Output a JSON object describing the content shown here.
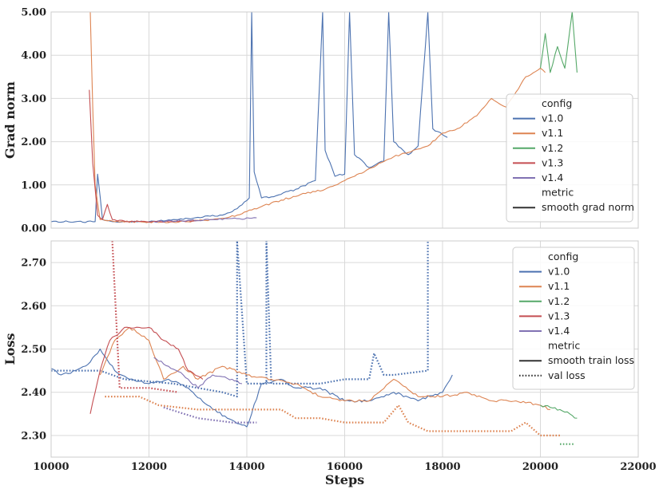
{
  "chart_data": [
    {
      "type": "line",
      "ylabel": "Grad norm",
      "xlabel": "",
      "xlim": [
        10000,
        22000
      ],
      "ylim": [
        0,
        5
      ],
      "yticks": [
        "0.00",
        "1.00",
        "2.00",
        "3.00",
        "4.00",
        "5.00"
      ],
      "grid": true,
      "legend": {
        "placement": "right",
        "config_title": "config",
        "metric_title": "metric",
        "config_entries": [
          {
            "label": "v1.0",
            "color": "#4c72b0"
          },
          {
            "label": "v1.1",
            "color": "#dd8452"
          },
          {
            "label": "v1.2",
            "color": "#55a868"
          },
          {
            "label": "v1.3",
            "color": "#c44e52"
          },
          {
            "label": "v1.4",
            "color": "#8172b3"
          }
        ],
        "metric_entries": [
          {
            "label": "smooth grad norm",
            "style": "solid"
          }
        ]
      },
      "series": [
        {
          "name": "v1.0",
          "metric": "smooth grad norm",
          "color": "#4c72b0",
          "points": [
            [
              10000,
              0.15
            ],
            [
              10500,
              0.15
            ],
            [
              10900,
              0.15
            ],
            [
              10950,
              1.25
            ],
            [
              11050,
              0.2
            ],
            [
              11300,
              0.15
            ],
            [
              12000,
              0.15
            ],
            [
              12600,
              0.2
            ],
            [
              13000,
              0.25
            ],
            [
              13500,
              0.3
            ],
            [
              13800,
              0.45
            ],
            [
              14050,
              0.7
            ],
            [
              14100,
              5.0
            ],
            [
              14150,
              1.3
            ],
            [
              14300,
              0.7
            ],
            [
              14600,
              0.75
            ],
            [
              15000,
              0.9
            ],
            [
              15400,
              1.1
            ],
            [
              15550,
              5.0
            ],
            [
              15600,
              1.8
            ],
            [
              15800,
              1.2
            ],
            [
              16000,
              1.25
            ],
            [
              16100,
              5.0
            ],
            [
              16200,
              1.7
            ],
            [
              16500,
              1.4
            ],
            [
              16800,
              1.55
            ],
            [
              16900,
              5.0
            ],
            [
              17000,
              2.0
            ],
            [
              17300,
              1.7
            ],
            [
              17500,
              1.9
            ],
            [
              17700,
              5.0
            ],
            [
              17800,
              2.3
            ],
            [
              18100,
              2.1
            ]
          ]
        },
        {
          "name": "v1.1",
          "metric": "smooth grad norm",
          "color": "#dd8452",
          "points": [
            [
              10800,
              5.0
            ],
            [
              10850,
              2.8
            ],
            [
              10900,
              1.0
            ],
            [
              11000,
              0.2
            ],
            [
              11300,
              0.15
            ],
            [
              12000,
              0.14
            ],
            [
              12800,
              0.15
            ],
            [
              13300,
              0.2
            ],
            [
              13800,
              0.3
            ],
            [
              14300,
              0.5
            ],
            [
              14700,
              0.65
            ],
            [
              15200,
              0.8
            ],
            [
              15600,
              0.9
            ],
            [
              16000,
              1.1
            ],
            [
              16400,
              1.3
            ],
            [
              16700,
              1.5
            ],
            [
              17000,
              1.65
            ],
            [
              17400,
              1.8
            ],
            [
              17700,
              1.9
            ],
            [
              18000,
              2.2
            ],
            [
              18300,
              2.3
            ],
            [
              18700,
              2.6
            ],
            [
              19000,
              3.0
            ],
            [
              19300,
              2.8
            ],
            [
              19700,
              3.5
            ],
            [
              20000,
              3.7
            ],
            [
              20100,
              3.6
            ]
          ]
        },
        {
          "name": "v1.2",
          "metric": "smooth grad norm",
          "color": "#55a868",
          "points": [
            [
              20000,
              3.7
            ],
            [
              20100,
              4.5
            ],
            [
              20200,
              3.6
            ],
            [
              20350,
              4.2
            ],
            [
              20500,
              3.7
            ],
            [
              20650,
              5.0
            ],
            [
              20750,
              3.6
            ]
          ]
        },
        {
          "name": "v1.3",
          "metric": "smooth grad norm",
          "color": "#c44e52",
          "points": [
            [
              10780,
              3.2
            ],
            [
              10850,
              1.5
            ],
            [
              10950,
              0.3
            ],
            [
              11050,
              0.2
            ],
            [
              11150,
              0.55
            ],
            [
              11250,
              0.2
            ],
            [
              11600,
              0.15
            ],
            [
              12400,
              0.15
            ],
            [
              13000,
              0.18
            ]
          ]
        },
        {
          "name": "v1.4",
          "metric": "smooth grad norm",
          "color": "#8172b3",
          "points": [
            [
              12100,
              0.15
            ],
            [
              12800,
              0.18
            ],
            [
              13300,
              0.2
            ],
            [
              13800,
              0.22
            ],
            [
              14200,
              0.24
            ]
          ]
        }
      ]
    },
    {
      "type": "line",
      "ylabel": "Loss",
      "xlabel": "Steps",
      "xlim": [
        10000,
        22000
      ],
      "ylim": [
        2.25,
        2.75
      ],
      "yticks": [
        "2.30",
        "2.40",
        "2.50",
        "2.60",
        "2.70"
      ],
      "xticks": [
        "10000",
        "12000",
        "14000",
        "16000",
        "18000",
        "20000",
        "22000"
      ],
      "grid": true,
      "legend": {
        "placement": "top-right",
        "config_title": "config",
        "metric_title": "metric",
        "config_entries": [
          {
            "label": "v1.0",
            "color": "#4c72b0"
          },
          {
            "label": "v1.1",
            "color": "#dd8452"
          },
          {
            "label": "v1.2",
            "color": "#55a868"
          },
          {
            "label": "v1.3",
            "color": "#c44e52"
          },
          {
            "label": "v1.4",
            "color": "#8172b3"
          }
        ],
        "metric_entries": [
          {
            "label": "smooth train loss",
            "style": "solid"
          },
          {
            "label": "val loss",
            "style": "dotted"
          }
        ]
      },
      "series": [
        {
          "name": "v1.0",
          "metric": "smooth train loss",
          "color": "#4c72b0",
          "points": [
            [
              10000,
              2.455
            ],
            [
              10200,
              2.44
            ],
            [
              10500,
              2.45
            ],
            [
              10800,
              2.47
            ],
            [
              11000,
              2.5
            ],
            [
              11300,
              2.45
            ],
            [
              11600,
              2.43
            ],
            [
              12000,
              2.42
            ],
            [
              12400,
              2.43
            ],
            [
              12800,
              2.41
            ],
            [
              13200,
              2.37
            ],
            [
              13600,
              2.34
            ],
            [
              14000,
              2.32
            ],
            [
              14300,
              2.42
            ],
            [
              14700,
              2.43
            ],
            [
              15000,
              2.41
            ],
            [
              15500,
              2.41
            ],
            [
              16000,
              2.38
            ],
            [
              16500,
              2.38
            ],
            [
              17000,
              2.4
            ],
            [
              17500,
              2.38
            ],
            [
              18000,
              2.4
            ],
            [
              18200,
              2.44
            ]
          ]
        },
        {
          "name": "v1.0",
          "metric": "val loss",
          "color": "#4c72b0",
          "points": [
            [
              10000,
              2.45
            ],
            [
              11000,
              2.45
            ],
            [
              11500,
              2.43
            ],
            [
              12500,
              2.42
            ],
            [
              13500,
              2.4
            ],
            [
              13800,
              2.39
            ],
            [
              13800,
              2.75
            ],
            [
              14000,
              2.42
            ],
            [
              14400,
              2.42
            ],
            [
              14400,
              2.75
            ],
            [
              14500,
              2.42
            ],
            [
              15500,
              2.42
            ],
            [
              16000,
              2.43
            ],
            [
              16500,
              2.43
            ],
            [
              16600,
              2.49
            ],
            [
              16800,
              2.44
            ],
            [
              17000,
              2.44
            ],
            [
              17700,
              2.45
            ],
            [
              17700,
              2.75
            ]
          ]
        },
        {
          "name": "v1.1",
          "metric": "smooth train loss",
          "color": "#dd8452",
          "points": [
            [
              11000,
              2.44
            ],
            [
              11300,
              2.52
            ],
            [
              11600,
              2.55
            ],
            [
              12000,
              2.52
            ],
            [
              12300,
              2.43
            ],
            [
              12700,
              2.46
            ],
            [
              13000,
              2.43
            ],
            [
              13500,
              2.46
            ],
            [
              14000,
              2.44
            ],
            [
              14500,
              2.43
            ],
            [
              15000,
              2.42
            ],
            [
              15500,
              2.39
            ],
            [
              16000,
              2.38
            ],
            [
              16500,
              2.38
            ],
            [
              17000,
              2.43
            ],
            [
              17500,
              2.39
            ],
            [
              18000,
              2.39
            ],
            [
              18500,
              2.4
            ],
            [
              19000,
              2.38
            ],
            [
              19500,
              2.38
            ],
            [
              20000,
              2.37
            ],
            [
              20200,
              2.36
            ]
          ]
        },
        {
          "name": "v1.1",
          "metric": "val loss",
          "color": "#dd8452",
          "points": [
            [
              11100,
              2.39
            ],
            [
              11800,
              2.39
            ],
            [
              12200,
              2.37
            ],
            [
              13000,
              2.36
            ],
            [
              14000,
              2.36
            ],
            [
              14700,
              2.36
            ],
            [
              15000,
              2.34
            ],
            [
              15500,
              2.34
            ],
            [
              16000,
              2.33
            ],
            [
              16800,
              2.33
            ],
            [
              17100,
              2.37
            ],
            [
              17300,
              2.33
            ],
            [
              17700,
              2.31
            ],
            [
              19400,
              2.31
            ],
            [
              19700,
              2.33
            ],
            [
              20000,
              2.3
            ],
            [
              20400,
              2.3
            ]
          ]
        },
        {
          "name": "v1.2",
          "metric": "smooth train loss",
          "color": "#55a868",
          "points": [
            [
              20000,
              2.37
            ],
            [
              20200,
              2.365
            ],
            [
              20400,
              2.36
            ],
            [
              20600,
              2.35
            ],
            [
              20750,
              2.34
            ]
          ]
        },
        {
          "name": "v1.2",
          "metric": "val loss",
          "color": "#55a868",
          "points": [
            [
              20400,
              2.28
            ],
            [
              20700,
              2.28
            ]
          ]
        },
        {
          "name": "v1.3",
          "metric": "smooth train loss",
          "color": "#c44e52",
          "points": [
            [
              10800,
              2.35
            ],
            [
              11000,
              2.45
            ],
            [
              11200,
              2.52
            ],
            [
              11500,
              2.55
            ],
            [
              12000,
              2.55
            ],
            [
              12300,
              2.52
            ],
            [
              12600,
              2.5
            ],
            [
              12800,
              2.45
            ],
            [
              13100,
              2.43
            ]
          ]
        },
        {
          "name": "v1.3",
          "metric": "val loss",
          "color": "#c44e52",
          "points": [
            [
              11250,
              2.75
            ],
            [
              11400,
              2.41
            ],
            [
              12000,
              2.41
            ],
            [
              12600,
              2.4
            ]
          ]
        },
        {
          "name": "v1.4",
          "metric": "smooth train loss",
          "color": "#8172b3",
          "points": [
            [
              12100,
              2.48
            ],
            [
              12400,
              2.46
            ],
            [
              12700,
              2.44
            ],
            [
              13000,
              2.41
            ],
            [
              13300,
              2.44
            ],
            [
              13700,
              2.43
            ],
            [
              13900,
              2.42
            ]
          ]
        },
        {
          "name": "v1.4",
          "metric": "val loss",
          "color": "#8172b3",
          "points": [
            [
              12300,
              2.365
            ],
            [
              13000,
              2.34
            ],
            [
              13700,
              2.33
            ],
            [
              14200,
              2.33
            ]
          ]
        }
      ]
    }
  ]
}
